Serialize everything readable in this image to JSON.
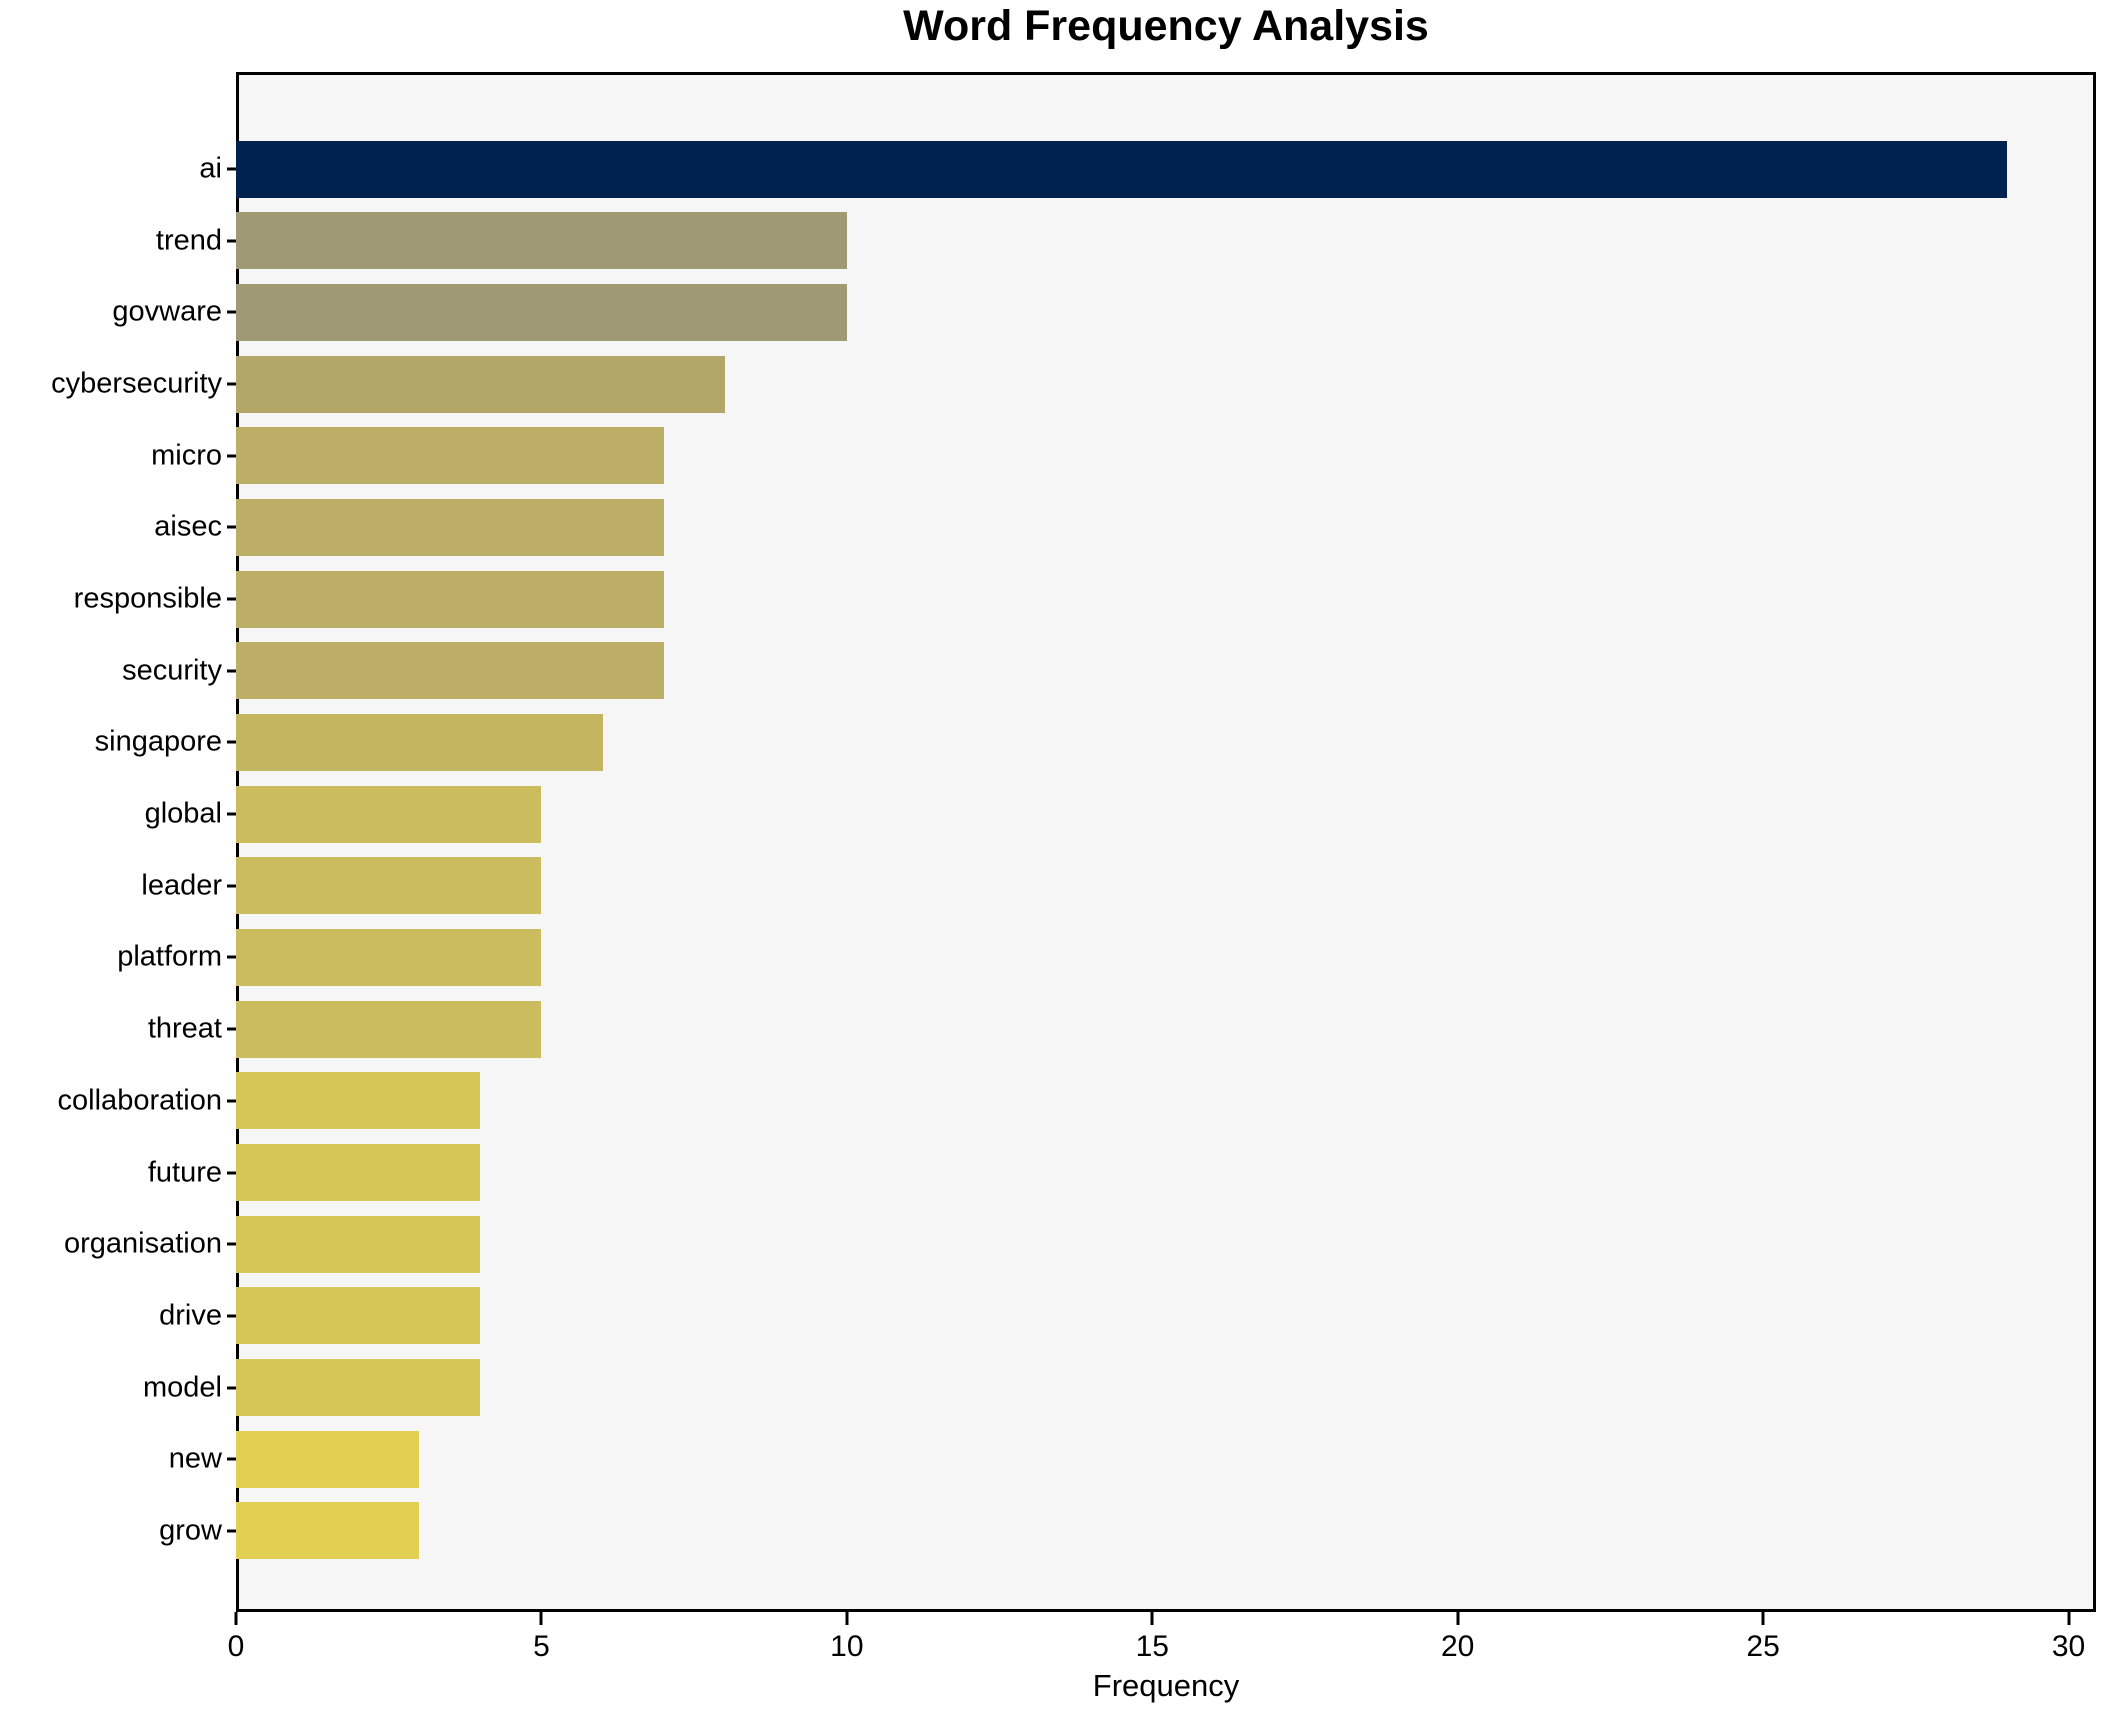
{
  "title": "Word Frequency Analysis",
  "chart_data": {
    "type": "bar",
    "orientation": "horizontal",
    "title": "Word Frequency Analysis",
    "xlabel": "Frequency",
    "ylabel": "",
    "categories": [
      "ai",
      "trend",
      "govware",
      "cybersecurity",
      "micro",
      "aisec",
      "responsible",
      "security",
      "singapore",
      "global",
      "leader",
      "platform",
      "threat",
      "collaboration",
      "future",
      "organisation",
      "drive",
      "model",
      "new",
      "grow"
    ],
    "values": [
      29,
      10,
      10,
      8,
      7,
      7,
      7,
      7,
      6,
      5,
      5,
      5,
      5,
      4,
      4,
      4,
      4,
      4,
      3,
      3
    ],
    "bar_colors": [
      "#00224e",
      "#a09a74",
      "#a09a74",
      "#b2a768",
      "#bcae66",
      "#bcae66",
      "#bcae66",
      "#bcae66",
      "#c4b660",
      "#cbbc5e",
      "#cbbc5e",
      "#cbbc5e",
      "#cbbc5e",
      "#d6c557",
      "#d6c557",
      "#d6c557",
      "#d6c557",
      "#d6c557",
      "#e2d052",
      "#e2d052"
    ],
    "xlim": [
      0,
      30.45
    ],
    "xticks": [
      0,
      5,
      10,
      15,
      20,
      25,
      30
    ],
    "grid": "off",
    "legend": "none",
    "plot_bg": "#f6f6f6",
    "fig_bg": "#ffffff",
    "spine_color": "#000000"
  }
}
